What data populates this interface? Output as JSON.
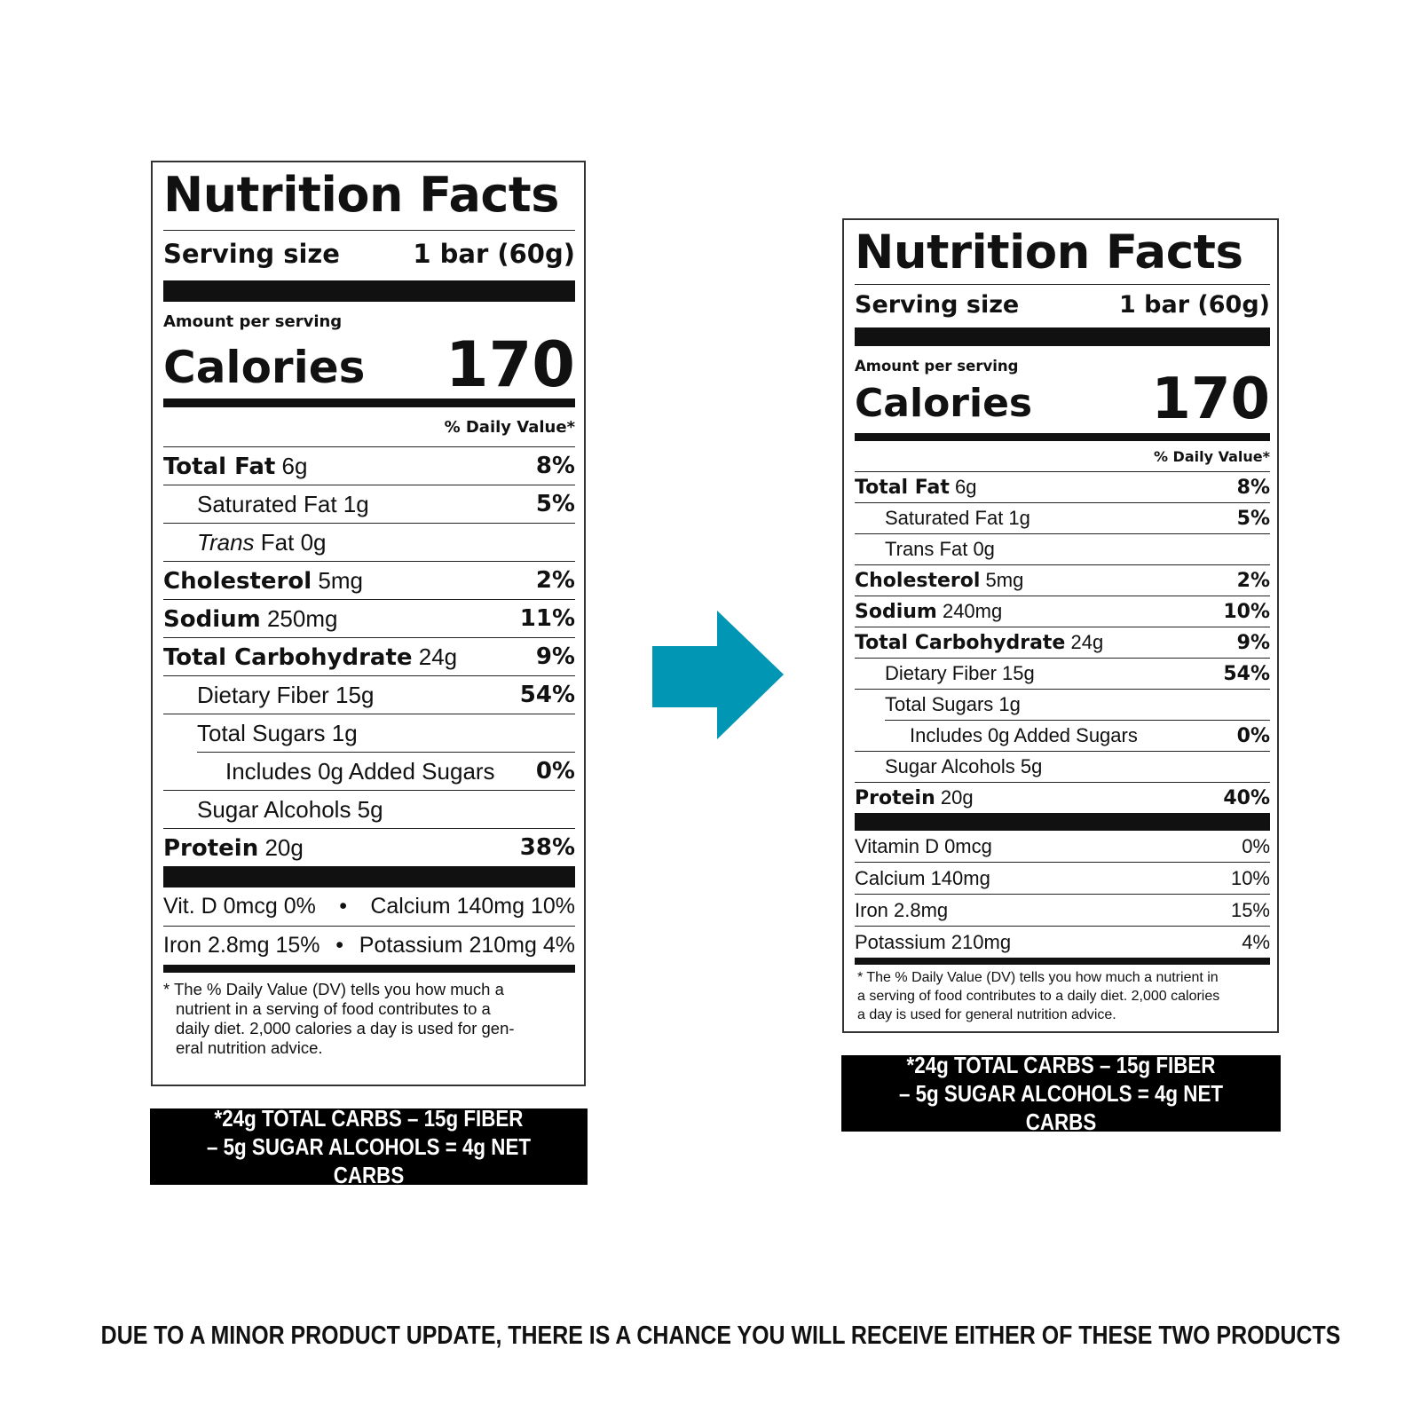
{
  "old_label": {
    "title": "Nutrition Facts",
    "serving_size_label": "Serving size",
    "serving_size_value": "1 bar (60g)",
    "amount_per_serving": "Amount per serving",
    "calories_label": "Calories",
    "calories_value": "170",
    "daily_value_header": "% Daily Value*",
    "rows": [
      {
        "name": "Total Fat",
        "amount": "6g",
        "dv": "8%"
      },
      {
        "name": "Saturated Fat",
        "amount": "1g",
        "dv": "5%"
      },
      {
        "name_italic": "Trans",
        "name": "Fat",
        "amount": "0g",
        "dv": ""
      },
      {
        "name": "Cholesterol",
        "amount": "5mg",
        "dv": "2%"
      },
      {
        "name": "Sodium",
        "amount": "250mg",
        "dv": "11%"
      },
      {
        "name": "Total Carbohydrate",
        "amount": "24g",
        "dv": "9%"
      },
      {
        "name": "Dietary Fiber",
        "amount": "15g",
        "dv": "54%"
      },
      {
        "name": "Total Sugars",
        "amount": "1g",
        "dv": ""
      },
      {
        "name": "Includes 0g Added Sugars",
        "amount": "",
        "dv": "0%"
      },
      {
        "name": "Sugar Alcohols",
        "amount": "5g",
        "dv": ""
      },
      {
        "name": "Protein",
        "amount": "20g",
        "dv": "38%"
      }
    ],
    "vitamins": [
      {
        "left": "Vit. D 0mcg 0%",
        "right": "Calcium 140mg 10%"
      },
      {
        "left": "Iron 2.8mg 15%",
        "right": "Potassium 210mg 4%"
      }
    ],
    "bullet": "•",
    "footnote_lines": [
      "* The % Daily Value (DV) tells you how much a",
      "nutrient in a serving of food contributes to a",
      "daily diet. 2,000 calories a day is used for gen-",
      "eral nutrition advice."
    ]
  },
  "new_label": {
    "title": "Nutrition Facts",
    "serving_size_label": "Serving size",
    "serving_size_value": "1 bar (60g)",
    "amount_per_serving": "Amount per serving",
    "calories_label": "Calories",
    "calories_value": "170",
    "daily_value_header": "% Daily Value*",
    "rows": [
      {
        "name": "Total Fat",
        "amount": "6g",
        "dv": "8%"
      },
      {
        "name": "Saturated Fat",
        "amount": "1g",
        "dv": "5%"
      },
      {
        "name": "Trans Fat",
        "amount": "0g",
        "dv": ""
      },
      {
        "name": "Cholesterol",
        "amount": "5mg",
        "dv": "2%"
      },
      {
        "name": "Sodium",
        "amount": "240mg",
        "dv": "10%"
      },
      {
        "name": "Total Carbohydrate",
        "amount": "24g",
        "dv": "9%"
      },
      {
        "name": "Dietary Fiber",
        "amount": "15g",
        "dv": "54%"
      },
      {
        "name": "Total Sugars",
        "amount": "1g",
        "dv": ""
      },
      {
        "name": "Includes 0g Added Sugars",
        "amount": "",
        "dv": "0%"
      },
      {
        "name": "Sugar Alcohols",
        "amount": "5g",
        "dv": ""
      },
      {
        "name": "Protein",
        "amount": "20g",
        "dv": "40%"
      }
    ],
    "vitamins": [
      {
        "name": "Vitamin D 0mcg",
        "dv": "0%"
      },
      {
        "name": "Calcium 140mg",
        "dv": "10%"
      },
      {
        "name": "Iron 2.8mg",
        "dv": "15%"
      },
      {
        "name": "Potassium 210mg",
        "dv": "4%"
      }
    ],
    "footnote_lines": [
      "* The % Daily Value (DV) tells you how much a nutrient in",
      "a serving of food contributes to a daily diet. 2,000 calories",
      "a day is used for general nutrition advice."
    ]
  },
  "net_carbs_box": {
    "line1": "*24g TOTAL CARBS – 15g FIBER",
    "line2": "– 5g SUGAR ALCOHOLS = 4g NET CARBS"
  },
  "notice": "DUE TO A MINOR PRODUCT UPDATE, THERE IS A CHANCE YOU WILL RECEIVE EITHER OF THESE TWO PRODUCTS",
  "colors": {
    "arrow": "#0096B4",
    "box_bg": "#000000",
    "box_text": "#FFFFFF"
  },
  "icons": {
    "arrow": "right-arrow-icon"
  }
}
